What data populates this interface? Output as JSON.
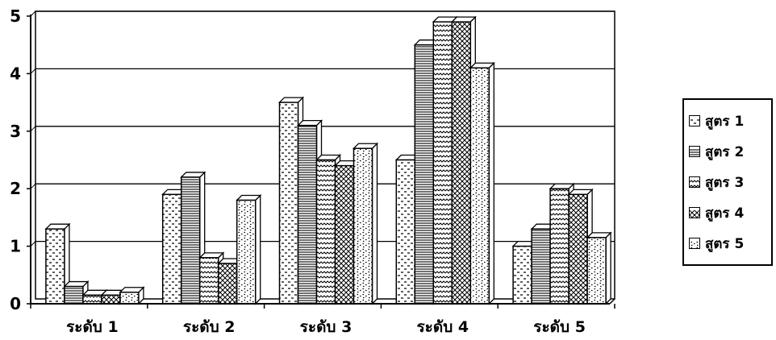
{
  "chart_data": {
    "type": "bar",
    "categories": [
      "ระดับ 1",
      "ระดับ 2",
      "ระดับ 3",
      "ระดับ 4",
      "ระดับ 5"
    ],
    "series": [
      {
        "name": "สูตร 1",
        "values": [
          1.3,
          1.9,
          3.5,
          2.5,
          1.0
        ]
      },
      {
        "name": "สูตร 2",
        "values": [
          0.3,
          2.2,
          3.1,
          4.5,
          1.3
        ]
      },
      {
        "name": "สูตร 3",
        "values": [
          0.15,
          0.8,
          2.5,
          4.9,
          2.0
        ]
      },
      {
        "name": "สูตร 4",
        "values": [
          0.15,
          0.7,
          2.4,
          4.9,
          1.9
        ]
      },
      {
        "name": "สูตร 5",
        "values": [
          0.2,
          1.8,
          2.7,
          4.1,
          1.15
        ]
      }
    ],
    "title": "",
    "xlabel": "",
    "ylabel": "",
    "ylim": [
      0,
      5
    ],
    "yticks": [
      "0",
      "1",
      "2",
      "3",
      "4",
      "5"
    ],
    "grid": true,
    "legend_position": "right",
    "style": "3d-bars-black-white-patterns"
  }
}
